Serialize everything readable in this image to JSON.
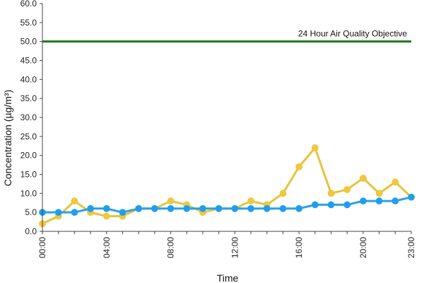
{
  "chart_data": {
    "type": "line",
    "title": "",
    "xlabel": "Time",
    "ylabel": "Concentration (µg/m³)",
    "ylim": [
      0,
      60
    ],
    "y_ticks": [
      "0.0",
      "5.0",
      "10.0",
      "15.0",
      "20.0",
      "25.0",
      "30.0",
      "35.0",
      "40.0",
      "45.0",
      "50.0",
      "55.0",
      "60.0"
    ],
    "x_tick_labels": [
      "00:00",
      "04:00",
      "08:00",
      "12:00",
      "16:00",
      "20:00",
      "23:00"
    ],
    "x_tick_hours": [
      0,
      4,
      8,
      12,
      16,
      20,
      23
    ],
    "grid": false,
    "legend": "none",
    "objective": {
      "value": 50,
      "label": "24 Hour Air Quality Objective",
      "color": "#1e7a1e"
    },
    "series": [
      {
        "color": "#e6c43a",
        "marker_color": "#f0c93a",
        "x": [
          0,
          1,
          2,
          3,
          4,
          5,
          6,
          7,
          8,
          9,
          10,
          11,
          12,
          13,
          14,
          15,
          16,
          17,
          18,
          19,
          20,
          21,
          22,
          23
        ],
        "values": [
          2,
          4,
          8,
          5,
          4,
          4,
          6,
          6,
          8,
          7,
          5,
          6,
          6,
          8,
          7,
          10,
          17,
          22,
          10,
          11,
          14,
          10,
          13,
          9
        ]
      },
      {
        "color": "#2aa0e8",
        "marker_color": "#1e9ef0",
        "x": [
          0,
          1,
          2,
          3,
          4,
          5,
          6,
          7,
          8,
          9,
          10,
          11,
          12,
          13,
          14,
          15,
          16,
          17,
          18,
          19,
          20,
          21,
          22,
          23
        ],
        "values": [
          5,
          5,
          5,
          6,
          6,
          5,
          6,
          6,
          6,
          6,
          6,
          6,
          6,
          6,
          6,
          6,
          6,
          7,
          7,
          7,
          8,
          8,
          8,
          9
        ]
      }
    ]
  }
}
